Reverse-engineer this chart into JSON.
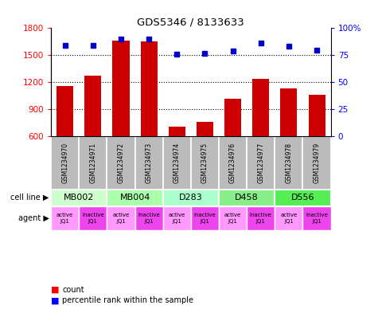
{
  "title": "GDS5346 / 8133633",
  "samples": [
    "GSM1234970",
    "GSM1234971",
    "GSM1234972",
    "GSM1234973",
    "GSM1234974",
    "GSM1234975",
    "GSM1234976",
    "GSM1234977",
    "GSM1234978",
    "GSM1234979"
  ],
  "counts": [
    1155,
    1270,
    1660,
    1650,
    710,
    760,
    1020,
    1240,
    1130,
    1060
  ],
  "percentiles": [
    84,
    84,
    90,
    90,
    76,
    77,
    79,
    86,
    83,
    80
  ],
  "cell_lines": [
    {
      "label": "MB002",
      "start": 0,
      "end": 2,
      "color": "#ccffcc"
    },
    {
      "label": "MB004",
      "start": 2,
      "end": 4,
      "color": "#aaffaa"
    },
    {
      "label": "D283",
      "start": 4,
      "end": 6,
      "color": "#aaffcc"
    },
    {
      "label": "D458",
      "start": 6,
      "end": 8,
      "color": "#88ee88"
    },
    {
      "label": "D556",
      "start": 8,
      "end": 10,
      "color": "#55ee55"
    }
  ],
  "agents": [
    "active\nJQ1",
    "inactive\nJQ1",
    "active\nJQ1",
    "inactive\nJQ1",
    "active\nJQ1",
    "inactive\nJQ1",
    "active\nJQ1",
    "inactive\nJQ1",
    "active\nJQ1",
    "inactive\nJQ1"
  ],
  "agent_active_color": "#ff99ff",
  "agent_inactive_color": "#ee44ee",
  "bar_color": "#cc0000",
  "dot_color": "#0000cc",
  "ylim_left": [
    600,
    1800
  ],
  "ylim_right": [
    0,
    100
  ],
  "yticks_left": [
    600,
    900,
    1200,
    1500,
    1800
  ],
  "yticks_right": [
    0,
    25,
    50,
    75,
    100
  ],
  "bar_width": 0.6,
  "sample_col_bg": "#bbbbbb"
}
